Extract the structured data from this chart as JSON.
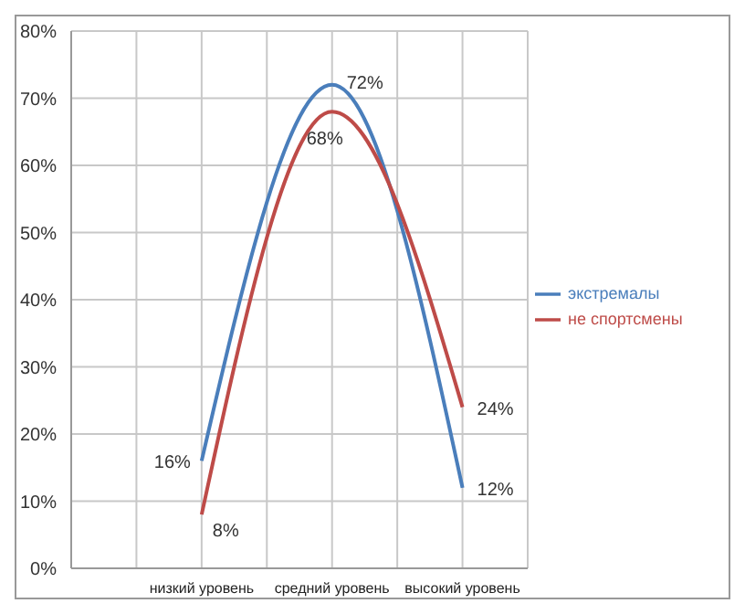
{
  "chart_data": {
    "type": "line",
    "categories": [
      null,
      null,
      "низкий уровень",
      null,
      "средний уровень",
      null,
      "высокий уровень",
      null
    ],
    "series": [
      {
        "name": "экстремалы",
        "color": "#4a7ebb",
        "values": [
          null,
          null,
          16,
          null,
          72,
          null,
          12,
          null
        ],
        "value_labels": [
          null,
          null,
          "16%",
          null,
          "72%",
          null,
          "12%",
          null
        ]
      },
      {
        "name": "не спортсмены",
        "color": "#be4b48",
        "values": [
          null,
          null,
          8,
          null,
          68,
          null,
          24,
          null
        ],
        "value_labels": [
          null,
          null,
          "8%",
          null,
          "68%",
          null,
          "24%",
          null
        ]
      }
    ],
    "ylim": [
      0,
      80
    ],
    "yticks": [
      {
        "value": 0,
        "label": "0%"
      },
      {
        "value": 10,
        "label": "10%"
      },
      {
        "value": 20,
        "label": "20%"
      },
      {
        "value": 30,
        "label": "30%"
      },
      {
        "value": 40,
        "label": "40%"
      },
      {
        "value": 50,
        "label": "50%"
      },
      {
        "value": 60,
        "label": "60%"
      },
      {
        "value": 70,
        "label": "70%"
      },
      {
        "value": 80,
        "label": "80%"
      }
    ],
    "grid": true,
    "legend": "right",
    "marker": "none",
    "line_style": "solid"
  }
}
